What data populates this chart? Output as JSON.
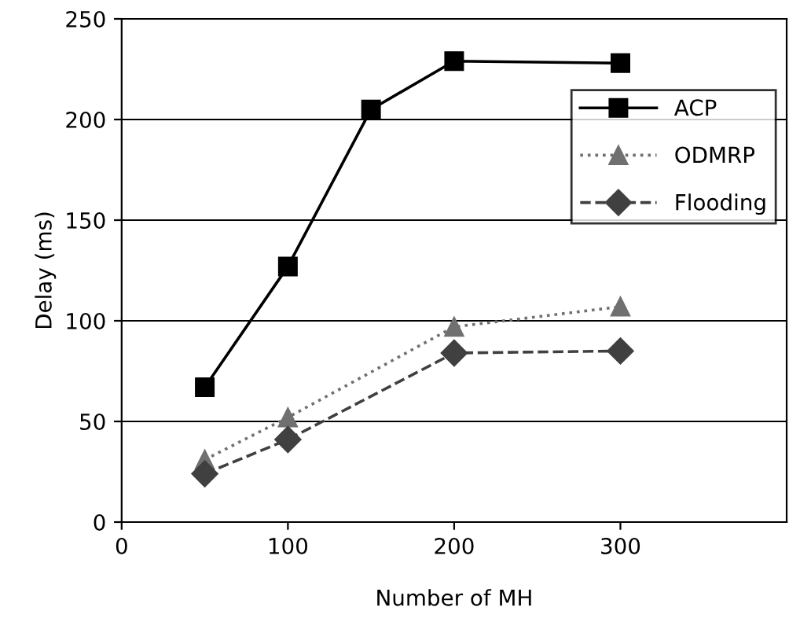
{
  "chart_data": {
    "type": "line",
    "xlabel": "Number of MH",
    "ylabel": "Delay (ms)",
    "xlim": [
      0,
      400
    ],
    "xticks": [
      0,
      100,
      200,
      300
    ],
    "ylim": [
      0,
      250
    ],
    "yticks": [
      0,
      50,
      100,
      150,
      200,
      250
    ],
    "grid": "y",
    "legend": "top right",
    "series": [
      {
        "name": "ACP",
        "color": "#000000",
        "marker": "square",
        "line_style": "solid",
        "x": [
          50,
          100,
          150,
          200,
          300
        ],
        "values": [
          67,
          127,
          205,
          229,
          228
        ]
      },
      {
        "name": "ODMRP",
        "color": "#707070",
        "marker": "triangle",
        "line_style": "dotted",
        "x": [
          50,
          100,
          200,
          300
        ],
        "values": [
          31,
          52,
          97,
          107
        ]
      },
      {
        "name": "Flooding",
        "color": "#404040",
        "marker": "diamond",
        "line_style": "dashed",
        "x": [
          50,
          100,
          200,
          300
        ],
        "values": [
          24,
          41,
          84,
          85
        ]
      }
    ]
  }
}
